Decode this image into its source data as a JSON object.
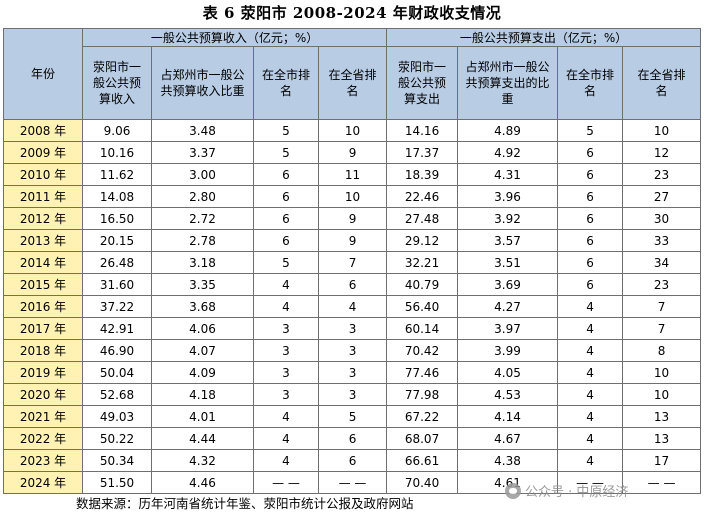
{
  "title": "表 6  荥阳市 2008-2024 年财政收支情况",
  "header": {
    "year": "年份",
    "income_group": "一般公共预算收入（亿元；%）",
    "expense_group": "一般公共预算支出（亿元；%）",
    "sub": [
      "荥阳市一般公共预算收入",
      "占郑州市一般公共预算收入比重",
      "在全市排名",
      "在全省排名",
      "荥阳市一般公共预算支出",
      "占郑州市一般公共预算支出的比重",
      "在全市排名",
      "在全省排名"
    ]
  },
  "rows": [
    [
      "2008 年",
      "9.06",
      "3.48",
      "5",
      "10",
      "14.16",
      "4.89",
      "5",
      "10"
    ],
    [
      "2009 年",
      "10.16",
      "3.37",
      "5",
      "9",
      "17.37",
      "4.92",
      "6",
      "12"
    ],
    [
      "2010 年",
      "11.62",
      "3.00",
      "6",
      "11",
      "18.39",
      "4.31",
      "6",
      "23"
    ],
    [
      "2011 年",
      "14.08",
      "2.80",
      "6",
      "10",
      "22.46",
      "3.96",
      "6",
      "27"
    ],
    [
      "2012 年",
      "16.50",
      "2.72",
      "6",
      "9",
      "27.48",
      "3.92",
      "6",
      "30"
    ],
    [
      "2013 年",
      "20.15",
      "2.78",
      "6",
      "9",
      "29.12",
      "3.57",
      "6",
      "33"
    ],
    [
      "2014 年",
      "26.48",
      "3.18",
      "5",
      "7",
      "32.21",
      "3.51",
      "6",
      "34"
    ],
    [
      "2015 年",
      "31.60",
      "3.35",
      "4",
      "6",
      "40.79",
      "3.69",
      "6",
      "23"
    ],
    [
      "2016 年",
      "37.22",
      "3.68",
      "4",
      "4",
      "56.40",
      "4.27",
      "4",
      "7"
    ],
    [
      "2017 年",
      "42.91",
      "4.06",
      "3",
      "3",
      "60.14",
      "3.97",
      "4",
      "7"
    ],
    [
      "2018 年",
      "46.90",
      "4.07",
      "3",
      "3",
      "70.42",
      "3.99",
      "4",
      "8"
    ],
    [
      "2019 年",
      "50.04",
      "4.09",
      "3",
      "3",
      "77.46",
      "4.05",
      "4",
      "10"
    ],
    [
      "2020 年",
      "52.68",
      "4.18",
      "3",
      "3",
      "77.98",
      "4.53",
      "4",
      "10"
    ],
    [
      "2021 年",
      "49.03",
      "4.01",
      "4",
      "5",
      "67.22",
      "4.14",
      "4",
      "13"
    ],
    [
      "2022 年",
      "50.22",
      "4.44",
      "4",
      "6",
      "68.07",
      "4.67",
      "4",
      "13"
    ],
    [
      "2023 年",
      "50.34",
      "4.32",
      "4",
      "6",
      "66.61",
      "4.38",
      "4",
      "17"
    ],
    [
      "2024 年",
      "51.50",
      "4.46",
      "— —",
      "— —",
      "70.40",
      "4.61",
      "— —",
      "— —"
    ]
  ],
  "source": "数据来源：历年河南省统计年鉴、荥阳市统计公报及政府网站",
  "watermark": "公众号 · 中原经济",
  "colors": {
    "header_bg": "#b8cce4",
    "year_bg": "#fff2b3",
    "border": "#6f6f6f"
  }
}
